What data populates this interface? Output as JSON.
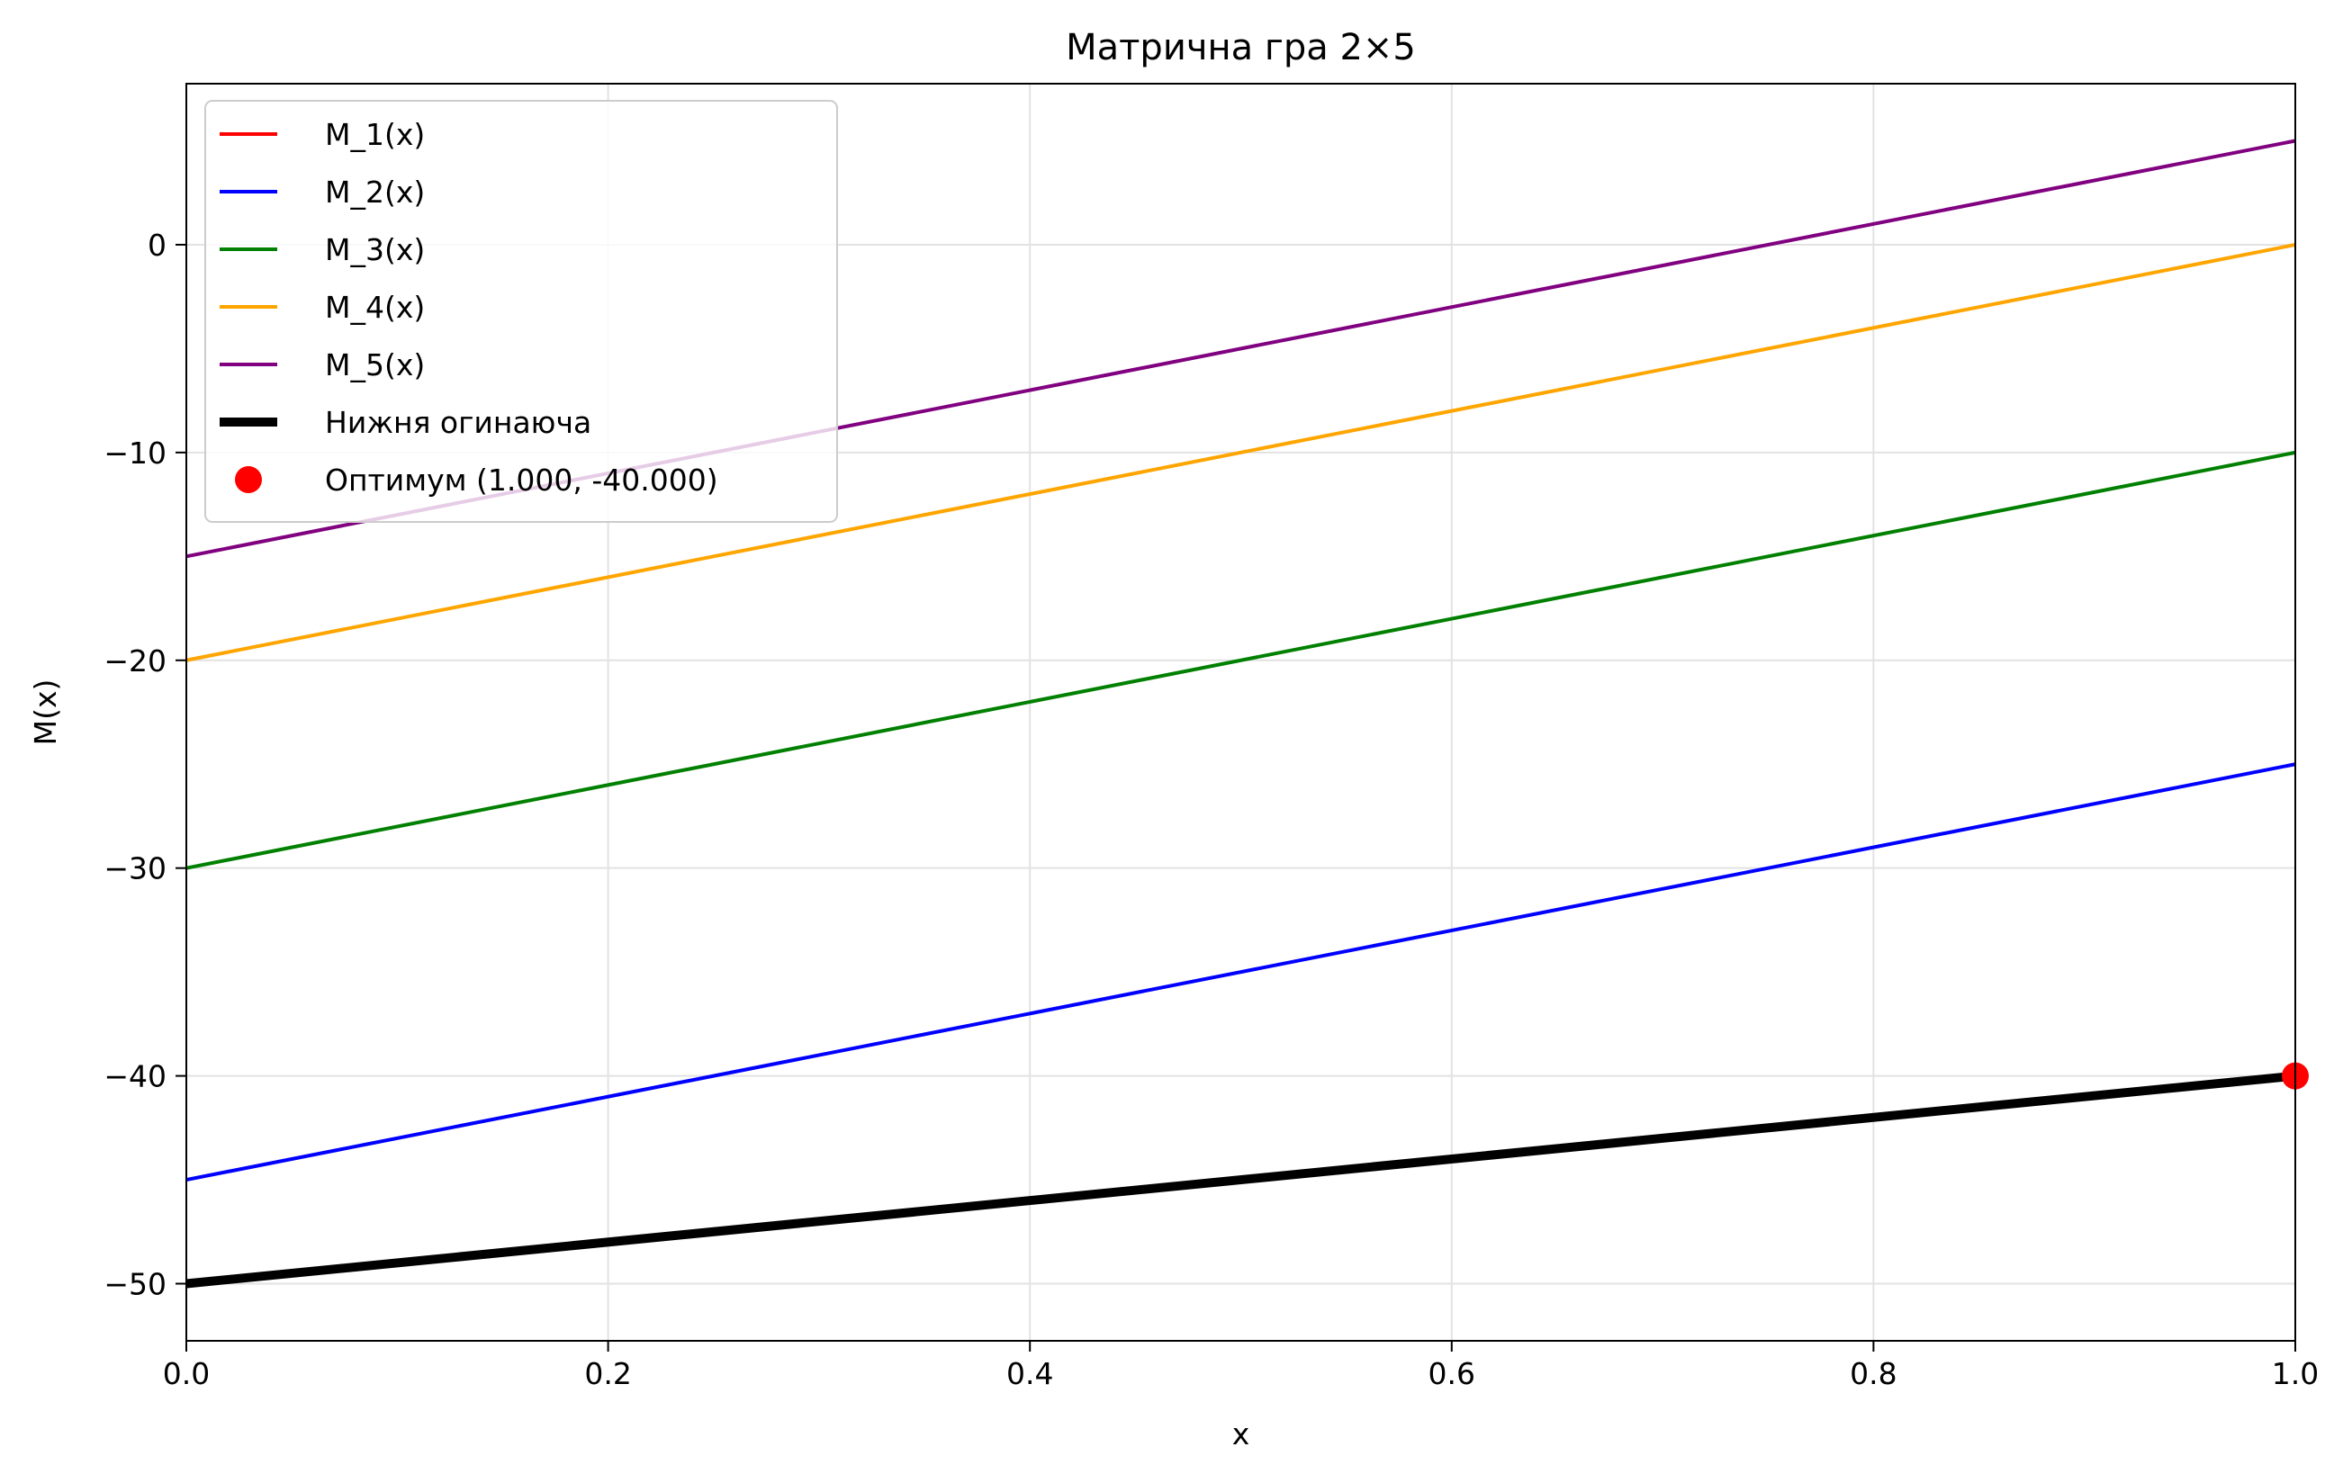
{
  "chart_data": {
    "type": "line",
    "title": "Матрична гра 2×5",
    "xlabel": "x",
    "ylabel": "M(x)",
    "xlim": [
      0.0,
      1.0
    ],
    "ylim": [
      -52.75,
      7.75
    ],
    "xticks": [
      0.0,
      0.2,
      0.4,
      0.6,
      0.8,
      1.0
    ],
    "xtick_labels": [
      "0.0",
      "0.2",
      "0.4",
      "0.6",
      "0.8",
      "1.0"
    ],
    "yticks": [
      -50,
      -40,
      -30,
      -20,
      -10,
      0
    ],
    "ytick_labels": [
      "−50",
      "−40",
      "−30",
      "−20",
      "−10",
      "0"
    ],
    "grid": true,
    "legend_position": "top-left",
    "series": [
      {
        "name": "M_1(x)",
        "color": "#ff0000",
        "x": [
          0,
          1
        ],
        "y": [
          -50,
          -40
        ]
      },
      {
        "name": "M_2(x)",
        "color": "#0000ff",
        "x": [
          0,
          1
        ],
        "y": [
          -45,
          -25
        ]
      },
      {
        "name": "M_3(x)",
        "color": "#008000",
        "x": [
          0,
          1
        ],
        "y": [
          -30,
          -10
        ]
      },
      {
        "name": "M_4(x)",
        "color": "#ffa500",
        "x": [
          0,
          1
        ],
        "y": [
          -20,
          0
        ]
      },
      {
        "name": "M_5(x)",
        "color": "#800080",
        "x": [
          0,
          1
        ],
        "y": [
          -15,
          5
        ]
      },
      {
        "name": "Нижня огинаюча",
        "color": "#000000",
        "x": [
          0,
          1
        ],
        "y": [
          -50,
          -40
        ],
        "emphasis": true
      }
    ],
    "optimum": {
      "label": "Оптимум (1.000, -40.000)",
      "x": 1.0,
      "y": -40.0,
      "color": "#ff0000"
    }
  }
}
